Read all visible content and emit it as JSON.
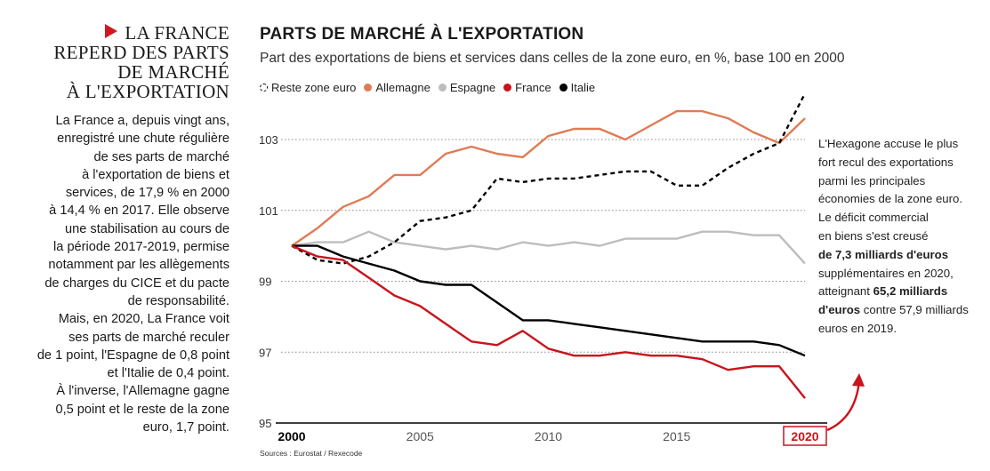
{
  "sidebar": {
    "headline_lines": [
      "LA FRANCE",
      "REPERD DES PARTS",
      "DE MARCHÉ",
      "À L'EXPORTATION"
    ],
    "body_lines": [
      "La France a, depuis vingt ans,",
      "enregistré une chute régulière",
      "de ses parts de marché",
      "à l'exportation de biens et",
      "services, de 17,9 % en 2000",
      "à 14,4 % en 2017. Elle observe",
      "une stabilisation au cours de",
      "la période 2017-2019, permise",
      "notamment par les allègements",
      "de charges du CICE et du pacte",
      "de responsabilité.",
      "Mais, en 2020, La France voit",
      "ses parts de marché reculer",
      "de 1 point, l'Espagne de 0,8 point",
      "et l'Italie de 0,4 point.",
      "À l'inverse, l'Allemagne gagne",
      "0,5 point et le reste de la zone",
      "euro, 1,7 point."
    ]
  },
  "chart_title": "PARTS DE MARCHÉ À L'EXPORTATION",
  "chart_subtitle": "Part des exportations de biens et services dans celles de la zone euro, en %, base 100 en 2000",
  "annotation": {
    "lines": [
      "L'Hexagone accuse le plus",
      "fort recul des exportations",
      "parmi les principales",
      "économies de la zone euro.",
      "Le déficit commercial",
      "en biens s'est creusé"
    ],
    "bold_1": "de 7,3 milliards d'euros",
    "line_after_bold_1": "supplémentaires en 2020,",
    "line_before_bold_2": "atteignant",
    "bold_2a": "65,2 milliards",
    "bold_2b": "d'euros",
    "tail_1": "contre 57,9 milliards",
    "tail_2": "euros en 2019."
  },
  "sources": "Sources : Eurostat / Rexecode",
  "colors": {
    "reste": "#000000",
    "allemagne": "#e07b54",
    "espagne": "#bdbdbd",
    "france": "#c8141c",
    "italie": "#000000",
    "accent": "#c8141c"
  },
  "chart_data": {
    "type": "line",
    "title": "PARTS DE MARCHÉ À L'EXPORTATION",
    "subtitle": "Part des exportations de biens et services dans celles de la zone euro, en %, base 100 en 2000",
    "x": [
      2000,
      2001,
      2002,
      2003,
      2004,
      2005,
      2006,
      2007,
      2008,
      2009,
      2010,
      2011,
      2012,
      2013,
      2014,
      2015,
      2016,
      2017,
      2018,
      2019,
      2020
    ],
    "xlim": [
      2000,
      2020
    ],
    "ylim": [
      95,
      104.5
    ],
    "y_ticks": [
      95,
      97,
      99,
      101,
      103
    ],
    "y_tick_labels": [
      "95",
      "97",
      "99",
      "101",
      "103"
    ],
    "x_ticks": [
      2000,
      2005,
      2010,
      2015,
      2020
    ],
    "x_tick_labels": [
      "2000",
      "2005",
      "2010",
      "2015",
      "2020"
    ],
    "grid": "horizontal dotted",
    "legend_position": "top-left",
    "series": [
      {
        "name": "Reste zone euro",
        "style": "dashed",
        "values": [
          100.0,
          99.6,
          99.5,
          99.7,
          100.1,
          100.7,
          100.8,
          101.0,
          101.9,
          101.8,
          101.9,
          101.9,
          102.0,
          102.1,
          102.1,
          101.7,
          101.7,
          102.2,
          102.6,
          102.9,
          104.3
        ]
      },
      {
        "name": "Allemagne",
        "style": "solid",
        "values": [
          100.0,
          100.5,
          101.1,
          101.4,
          102.0,
          102.0,
          102.6,
          102.8,
          102.6,
          102.5,
          103.1,
          103.3,
          103.3,
          103.0,
          103.4,
          103.8,
          103.8,
          103.6,
          103.2,
          102.9,
          103.6
        ]
      },
      {
        "name": "Espagne",
        "style": "solid",
        "values": [
          100.0,
          100.1,
          100.1,
          100.4,
          100.1,
          100.0,
          99.9,
          100.0,
          99.9,
          100.1,
          100.0,
          100.1,
          100.0,
          100.2,
          100.2,
          100.2,
          100.4,
          100.4,
          100.3,
          100.3,
          99.5
        ]
      },
      {
        "name": "France",
        "style": "solid",
        "values": [
          100.0,
          99.7,
          99.6,
          99.1,
          98.6,
          98.3,
          97.8,
          97.3,
          97.2,
          97.6,
          97.1,
          96.9,
          96.9,
          97.0,
          96.9,
          96.9,
          96.8,
          96.5,
          96.6,
          96.6,
          95.7
        ]
      },
      {
        "name": "Italie",
        "style": "solid",
        "values": [
          100.0,
          100.0,
          99.7,
          99.5,
          99.3,
          99.0,
          98.9,
          98.9,
          98.4,
          97.9,
          97.9,
          97.8,
          97.7,
          97.6,
          97.5,
          97.4,
          97.3,
          97.3,
          97.3,
          97.2,
          96.9
        ]
      }
    ]
  }
}
